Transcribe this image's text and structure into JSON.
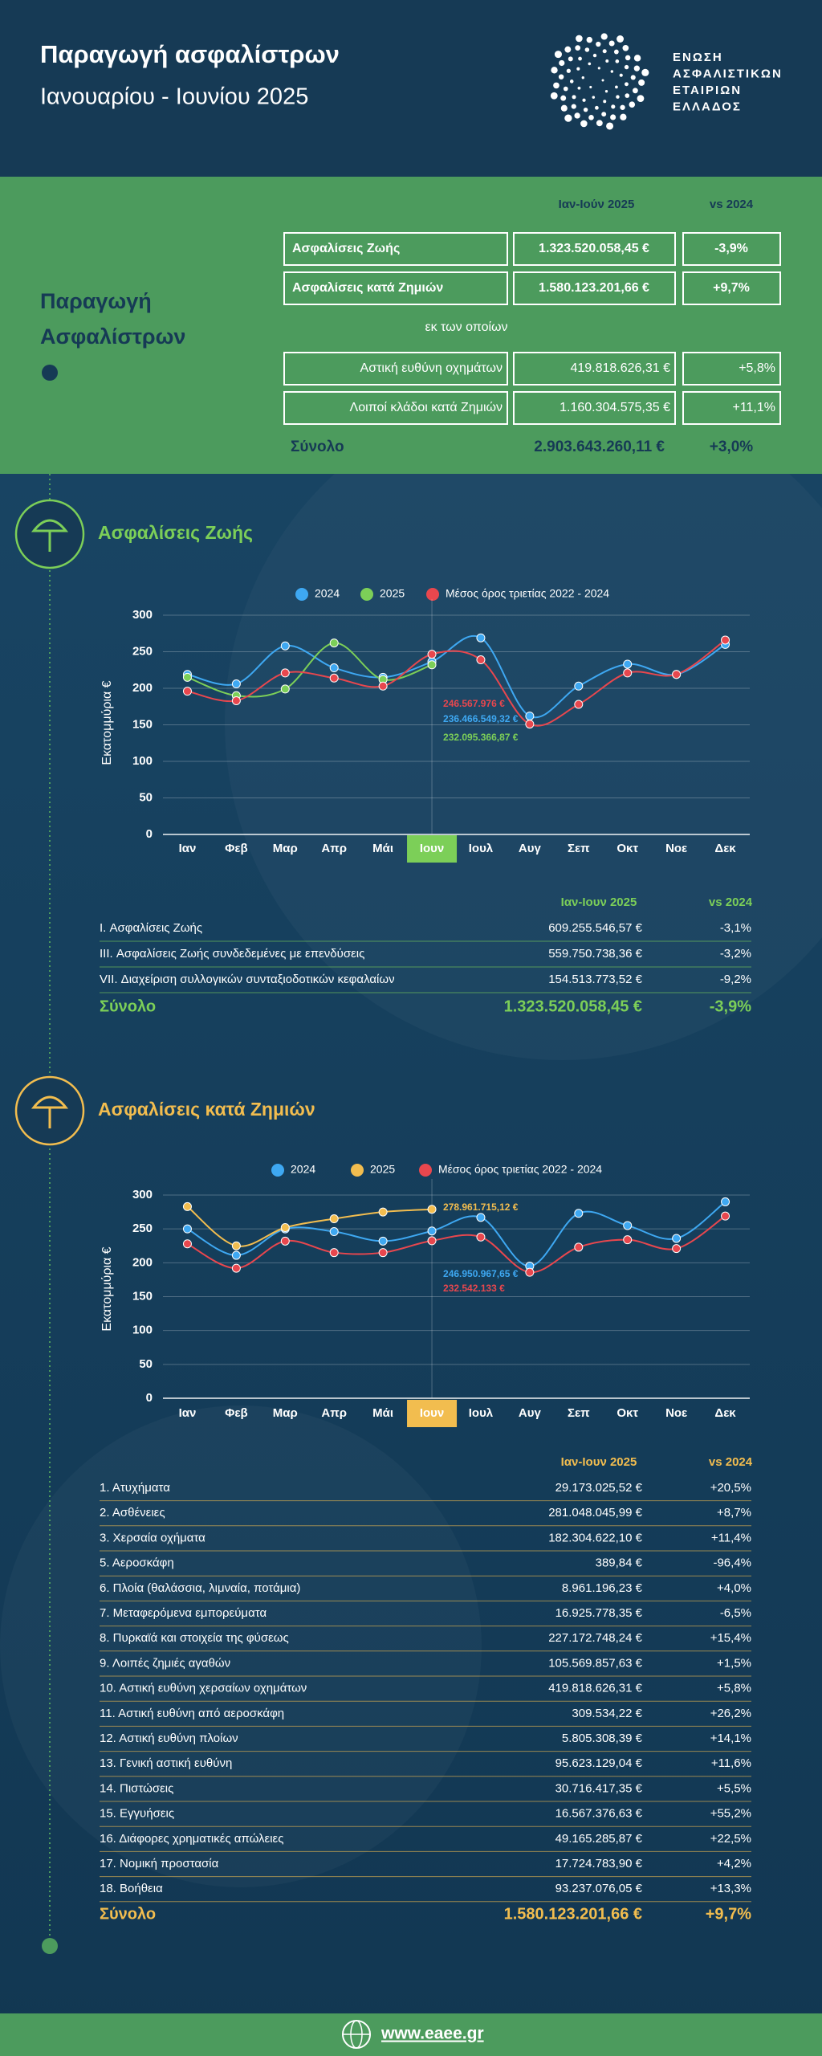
{
  "header": {
    "title": "Παραγωγή ασφαλίστρων",
    "subtitle": "Ιανουαρίου - Ιουνίου 2025",
    "logo_lines": [
      "ΕΝΩΣΗ",
      "ΑΣΦΑΛΙΣΤΙΚΩΝ",
      "ΕΤΑΙΡΙΩΝ",
      "ΕΛΛΑΔΟΣ"
    ]
  },
  "summary": {
    "title_lines": [
      "Παραγωγή",
      "Ασφαλίστρων"
    ],
    "columns": [
      "Ιαν-Ιούν 2025",
      "vs 2024"
    ],
    "rows": [
      [
        "Ασφαλίσεις Ζωής",
        "1.323.520.058,45 €",
        "-3,9%"
      ],
      [
        "Ασφαλίσεις κατά Ζημιών",
        "1.580.123.201,66 €",
        "+9,7%"
      ]
    ],
    "subheading": "εκ των οποίων",
    "subrows": [
      [
        "Αστική ευθύνη οχημάτων",
        "419.818.626,31 €",
        "+5,8%"
      ],
      [
        "Λοιποί κλάδοι κατά Ζημιών",
        "1.160.304.575,35 €",
        "+11,1%"
      ]
    ],
    "total": [
      "Σύνολο",
      "2.903.643.260,11 €",
      "+3,0%"
    ]
  },
  "chart_data": [
    {
      "type": "line",
      "title": "Ασφαλίσεις Ζωής",
      "ylabel": "Εκατομμύρια €",
      "categories": [
        "Ιαν",
        "Φεβ",
        "Μαρ",
        "Απρ",
        "Μάι",
        "Ιουν",
        "Ιουλ",
        "Αυγ",
        "Σεπ",
        "Οκτ",
        "Νοε",
        "Δεκ"
      ],
      "ylim": [
        0,
        300
      ],
      "yticks": [
        0,
        50,
        100,
        150,
        200,
        250,
        300
      ],
      "grid": true,
      "series": [
        {
          "name": "2024",
          "color": "#3ea8f2",
          "values": [
            219,
            206,
            258,
            228,
            215,
            236.46654932,
            269,
            162,
            203,
            233,
            219,
            260
          ],
          "value_labels": [
            null,
            null,
            null,
            null,
            null,
            "236.466.549,32 €",
            null,
            null,
            null,
            null,
            null,
            null
          ]
        },
        {
          "name": "2025",
          "color": "#7ccf58",
          "values": [
            215,
            190,
            199,
            262,
            212,
            232.09536687,
            null,
            null,
            null,
            null,
            null,
            null
          ],
          "value_labels": [
            null,
            null,
            null,
            null,
            null,
            "232.095.366,87 €",
            null,
            null,
            null,
            null,
            null,
            null
          ]
        },
        {
          "name": "Μέσος όρος τριετίας 2022 - 2024",
          "color": "#e8474e",
          "values": [
            196,
            183,
            221,
            214,
            203,
            246.567976,
            239,
            151,
            178,
            221,
            219,
            266
          ],
          "value_labels": [
            null,
            null,
            null,
            null,
            null,
            "246.567.976 €",
            null,
            null,
            null,
            null,
            null,
            null
          ]
        }
      ]
    },
    {
      "type": "line",
      "title": "Ασφαλίσεις κατά Ζημιών",
      "ylabel": "Εκατομμύρια €",
      "categories": [
        "Ιαν",
        "Φεβ",
        "Μαρ",
        "Απρ",
        "Μάι",
        "Ιουν",
        "Ιουλ",
        "Αυγ",
        "Σεπ",
        "Οκτ",
        "Νοε",
        "Δεκ"
      ],
      "ylim": [
        0,
        300
      ],
      "yticks": [
        0,
        50,
        100,
        150,
        200,
        250,
        300
      ],
      "grid": true,
      "series": [
        {
          "name": "2024",
          "color": "#3ea8f2",
          "values": [
            250,
            211,
            250,
            246,
            232,
            246.95096765,
            267,
            195,
            273,
            255,
            236,
            290
          ],
          "value_labels": [
            null,
            null,
            null,
            null,
            null,
            "246.950.967,65 €",
            null,
            null,
            null,
            null,
            null,
            null
          ]
        },
        {
          "name": "2025",
          "color": "#f2bd4f",
          "values": [
            283,
            225,
            252,
            265,
            275,
            278.96171512,
            null,
            null,
            null,
            null,
            null,
            null
          ],
          "value_labels": [
            null,
            null,
            null,
            null,
            null,
            "278.961.715,12 €",
            null,
            null,
            null,
            null,
            null,
            null
          ]
        },
        {
          "name": "Μέσος όρος τριετίας 2022 - 2024",
          "color": "#e8474e",
          "values": [
            228,
            192,
            232,
            215,
            215,
            232.542133,
            238,
            186,
            223,
            234,
            221,
            269
          ],
          "value_labels": [
            null,
            null,
            null,
            null,
            null,
            "232.542.133 €",
            null,
            null,
            null,
            null,
            null,
            null
          ]
        }
      ]
    }
  ],
  "tables": [
    {
      "columns": [
        "Ιαν-Ιουν 2025",
        "vs 2024"
      ],
      "rows": [
        [
          "I. Ασφαλίσεις Ζωής",
          "609.255.546,57 €",
          "-3,1%"
        ],
        [
          "III. Ασφαλίσεις Ζωής συνδεδεμένες με επενδύσεις",
          "559.750.738,36 €",
          "-3,2%"
        ],
        [
          "VII. Διαχείριση συλλογικών συνταξιοδοτικών κεφαλαίων",
          "154.513.773,52 €",
          "-9,2%"
        ]
      ],
      "total": [
        "Σύνολο",
        "1.323.520.058,45 €",
        "-3,9%"
      ]
    },
    {
      "columns": [
        "Ιαν-Ιουν 2025",
        "vs 2024"
      ],
      "rows": [
        [
          "1. Ατυχήματα",
          "29.173.025,52 €",
          "+20,5%"
        ],
        [
          "2. Ασθένειες",
          "281.048.045,99 €",
          "+8,7%"
        ],
        [
          "3. Χερσαία οχήματα",
          "182.304.622,10 €",
          "+11,4%"
        ],
        [
          "5. Αεροσκάφη",
          "389,84 €",
          "-96,4%"
        ],
        [
          "6. Πλοία (θαλάσσια, λιμναία, ποτάμια)",
          "8.961.196,23 €",
          "+4,0%"
        ],
        [
          "7. Μεταφερόμενα εμπορεύματα",
          "16.925.778,35 €",
          "-6,5%"
        ],
        [
          "8. Πυρκαϊά και στοιχεία της φύσεως",
          "227.172.748,24 €",
          "+15,4%"
        ],
        [
          "9. Λοιπές ζημιές αγαθών",
          "105.569.857,63 €",
          "+1,5%"
        ],
        [
          "10. Αστική ευθύνη χερσαίων οχημάτων",
          "419.818.626,31 €",
          "+5,8%"
        ],
        [
          "11. Αστική ευθύνη από αεροσκάφη",
          "309.534,22 €",
          "+26,2%"
        ],
        [
          "12. Αστική ευθύνη πλοίων",
          "5.805.308,39 €",
          "+14,1%"
        ],
        [
          "13. Γενική αστική ευθύνη",
          "95.623.129,04 €",
          "+11,6%"
        ],
        [
          "14. Πιστώσεις",
          "30.716.417,35 €",
          "+5,5%"
        ],
        [
          "15. Εγγυήσεις",
          "16.567.376,63 €",
          "+55,2%"
        ],
        [
          "16. Διάφορες χρηματικές απώλειες",
          "49.165.285,87 €",
          "+22,5%"
        ],
        [
          "17. Νομική προστασία",
          "17.724.783,90 €",
          "+4,2%"
        ],
        [
          "18. Βοήθεια",
          "93.237.076,05 €",
          "+13,3%"
        ]
      ],
      "total": [
        "Σύνολο",
        "1.580.123.201,66 €",
        "+9,7%"
      ]
    }
  ],
  "footer": {
    "url": "www.eaee.gr"
  }
}
